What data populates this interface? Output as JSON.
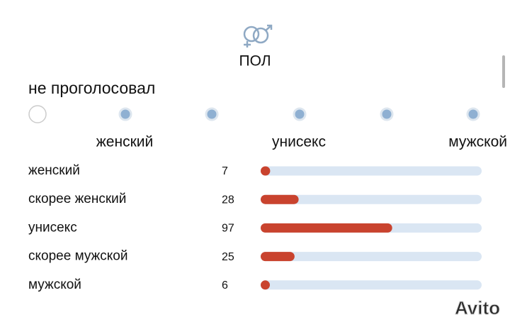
{
  "header": {
    "title": "ПОЛ"
  },
  "vote": {
    "status": "не проголосовал"
  },
  "scale": {
    "labels": [
      "женский",
      "унисекс",
      "мужской"
    ]
  },
  "results": {
    "bar_color": "#c9432e",
    "track_color": "#dae6f3",
    "rows": [
      {
        "label": "женский",
        "count": 7
      },
      {
        "label": "скорее женский",
        "count": 28
      },
      {
        "label": "унисекс",
        "count": 97
      },
      {
        "label": "скорее мужской",
        "count": 25
      },
      {
        "label": "мужской",
        "count": 6
      }
    ]
  },
  "watermark": "Avito"
}
